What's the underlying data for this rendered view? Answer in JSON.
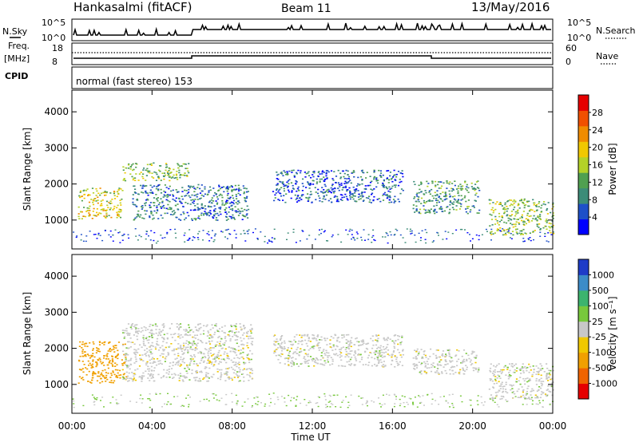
{
  "header": {
    "station": "Hankasalmi (fitACF)",
    "beam": "Beam 11",
    "date": "13/May/2016"
  },
  "params": {
    "nsky_label": "N.Sky",
    "nsky_ticks": [
      "10^5",
      "10^0"
    ],
    "nsearch_label": "N.Search",
    "nsearch_ticks": [
      "10^5",
      "10^0"
    ],
    "freq_label": "Freq.",
    "freq_unit": "[MHz]",
    "freq_ticks": [
      "18",
      "8"
    ],
    "nave_label": "Nave",
    "nave_ticks": [
      "60",
      "0"
    ],
    "cpid_label": "CPID",
    "cpid_text": "normal (fast stereo) 153"
  },
  "chart_data": [
    {
      "type": "heatmap",
      "panel": "power",
      "xlabel": "",
      "ylabel": "Slant Range [km]",
      "ylim": [
        200,
        4600
      ],
      "yticks": [
        "4000",
        "3000",
        "2000",
        "1000"
      ],
      "xlim": [
        "00:00",
        "24:00"
      ],
      "colorbar": {
        "label": "Power [dB]",
        "ticks": [
          "28",
          "24",
          "20",
          "16",
          "12",
          "8",
          "4"
        ],
        "colors": [
          "#0000ff",
          "#1e50c8",
          "#3c8c78",
          "#50a050",
          "#b4d228",
          "#f0c800",
          "#f08c00",
          "#f05000",
          "#e60000"
        ]
      },
      "regions": [
        {
          "t0": 0.3,
          "t1": 2.5,
          "r0": 1050,
          "r1": 1900,
          "value": 18
        },
        {
          "t0": 2.5,
          "t1": 5.8,
          "r0": 2100,
          "r1": 2600,
          "value": 14
        },
        {
          "t0": 3.0,
          "t1": 8.8,
          "r0": 1000,
          "r1": 2000,
          "value": 8
        },
        {
          "t0": 10.0,
          "t1": 16.5,
          "r0": 1500,
          "r1": 2400,
          "value": 6
        },
        {
          "t0": 17.0,
          "t1": 20.3,
          "r0": 1200,
          "r1": 2100,
          "value": 10
        },
        {
          "t0": 20.8,
          "t1": 24.0,
          "r0": 600,
          "r1": 1600,
          "value": 14
        }
      ]
    },
    {
      "type": "heatmap",
      "panel": "velocity",
      "xlabel": "Time UT",
      "ylabel": "Slant Range [km]",
      "ylim": [
        200,
        4600
      ],
      "yticks": [
        "4000",
        "3000",
        "2000",
        "1000"
      ],
      "xticks": [
        "00:00",
        "04:00",
        "08:00",
        "12:00",
        "16:00",
        "20:00",
        "00:00"
      ],
      "xlim": [
        "00:00",
        "24:00"
      ],
      "colorbar": {
        "label": "Velocity [m s⁻¹]",
        "ticks": [
          "1000",
          "500",
          "100",
          "25",
          "-25",
          "-100",
          "-500",
          "-1000"
        ],
        "colors": [
          "#1e3cc8",
          "#3c8cc8",
          "#3cb46e",
          "#78c83c",
          "#c8c8c8",
          "#f0c800",
          "#f0a000",
          "#f06400",
          "#e60000"
        ]
      },
      "regions": [
        {
          "t0": 0.3,
          "t1": 2.7,
          "r0": 1050,
          "r1": 2200,
          "value": -150
        },
        {
          "t0": 2.5,
          "t1": 9.0,
          "r0": 1100,
          "r1": 2700,
          "value": 0
        },
        {
          "t0": 10.0,
          "t1": 16.5,
          "r0": 1500,
          "r1": 2400,
          "value": 0
        },
        {
          "t0": 17.0,
          "t1": 20.3,
          "r0": 1300,
          "r1": 2000,
          "value": 0
        },
        {
          "t0": 20.8,
          "t1": 24.0,
          "r0": 600,
          "r1": 1600,
          "value": 0
        }
      ]
    }
  ]
}
